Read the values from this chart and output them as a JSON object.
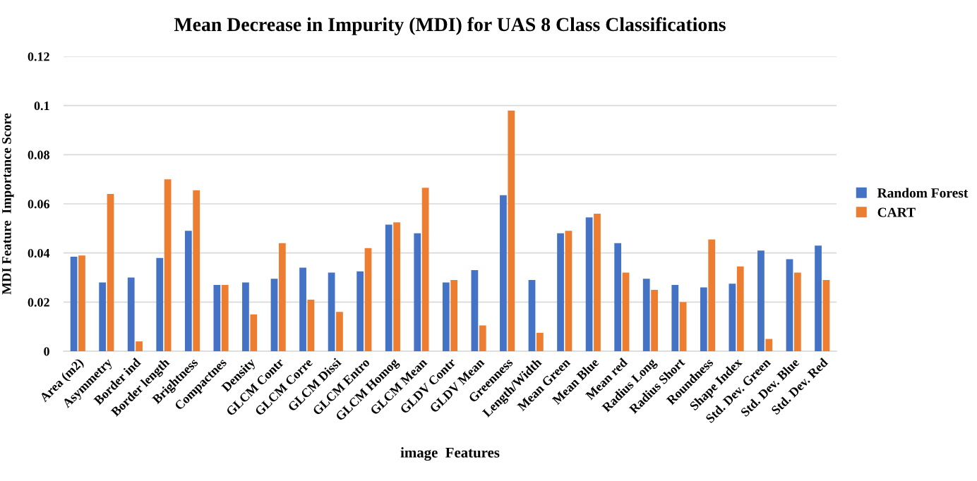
{
  "chart_data": {
    "type": "bar",
    "title": "Mean Decrease in Impurity (MDI) for UAS 8 Class Classifications",
    "xlabel": "image  Features",
    "ylabel": "MDI Feature  Importance Score",
    "categories": [
      "Area (m2)",
      "Asymmetry",
      "Border ind",
      "Border length",
      "Brightness",
      "Compactnes",
      "Density",
      "GLCM Contr",
      "GLCM Corre",
      "GLCM Dissi",
      "GLCM Entro",
      "GLCM Homog",
      "GLCM Mean",
      "GLDV Contr",
      "GLDV Mean",
      "Greenness",
      "Length/Width",
      "Mean Green",
      "Mean Blue",
      "Mean red",
      "Radius Long",
      "Radius Short",
      "Roundness",
      "Shape Index",
      "Std. Dev. Green",
      "Std. Dev. Blue",
      "Std. Dev. Red"
    ],
    "series": [
      {
        "name": "Random Forest",
        "color": "#4472c4",
        "values": [
          0.0385,
          0.028,
          0.03,
          0.038,
          0.049,
          0.027,
          0.028,
          0.0295,
          0.034,
          0.032,
          0.0325,
          0.0515,
          0.048,
          0.028,
          0.033,
          0.0635,
          0.029,
          0.048,
          0.0545,
          0.044,
          0.0295,
          0.027,
          0.026,
          0.0275,
          0.041,
          0.0375,
          0.043
        ]
      },
      {
        "name": "CART",
        "color": "#ed7d31",
        "values": [
          0.039,
          0.064,
          0.004,
          0.07,
          0.0655,
          0.027,
          0.015,
          0.044,
          0.021,
          0.016,
          0.042,
          0.0525,
          0.0665,
          0.029,
          0.0105,
          0.098,
          0.0075,
          0.049,
          0.056,
          0.032,
          0.025,
          0.02,
          0.0455,
          0.0345,
          0.005,
          0.032,
          0.029
        ]
      }
    ],
    "ylim": [
      0,
      0.12
    ],
    "yticks": [
      0,
      {
        "value": 0.02,
        "label": "0.02"
      },
      {
        "value": 0.04,
        "label": "0.04"
      },
      {
        "value": 0.06,
        "label": "0.06"
      },
      {
        "value": 0.08,
        "label": "0.08"
      },
      {
        "value": 0.1,
        "label": "0.1"
      },
      {
        "value": 0.12,
        "label": "0.12"
      }
    ],
    "grid": "y",
    "legend": "right"
  }
}
